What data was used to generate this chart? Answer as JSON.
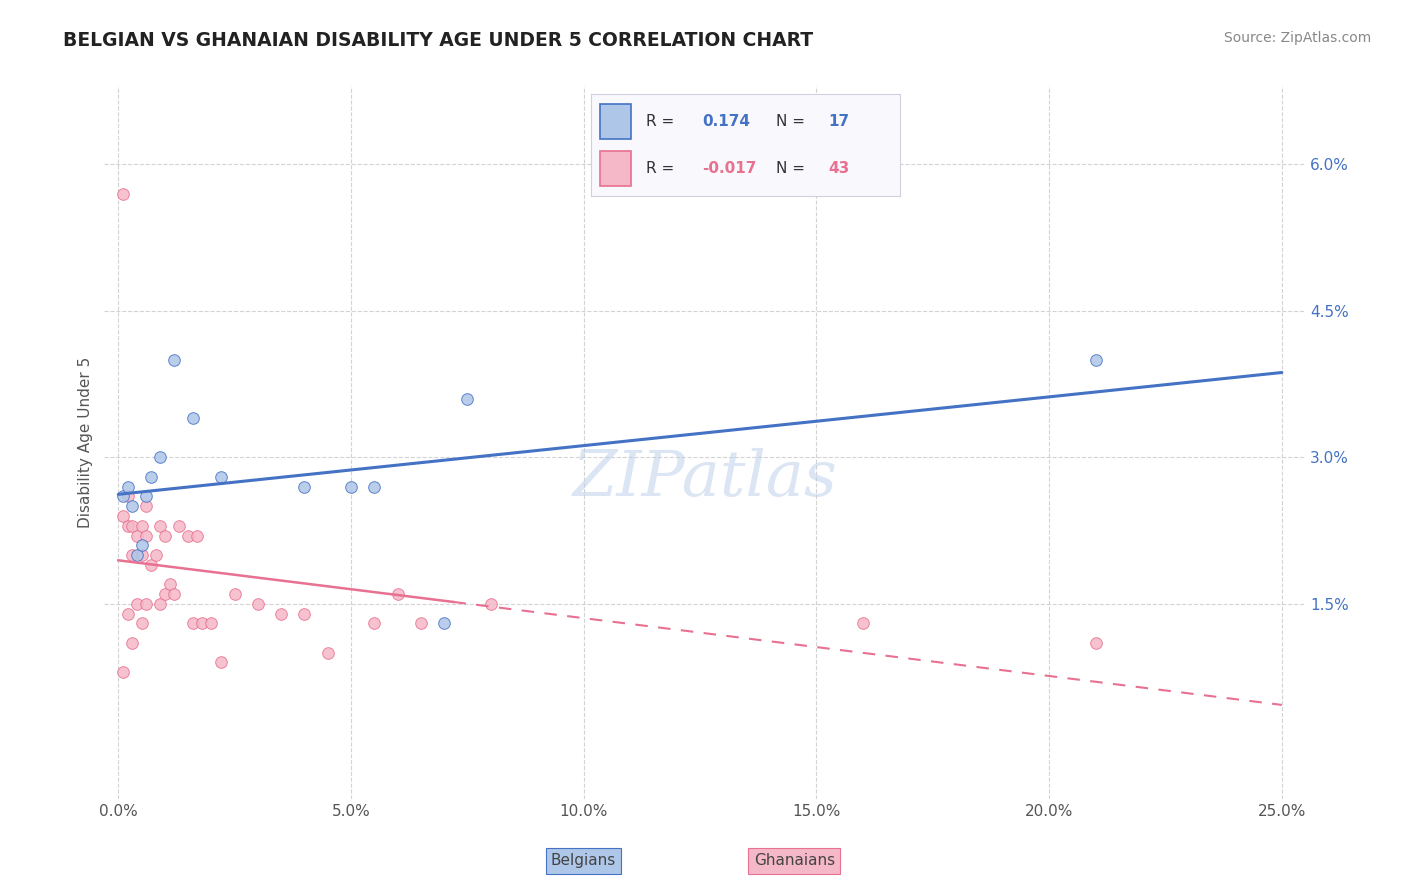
{
  "title": "BELGIAN VS GHANAIAN DISABILITY AGE UNDER 5 CORRELATION CHART",
  "source": "Source: ZipAtlas.com",
  "ylabel": "Disability Age Under 5",
  "xlim": [
    -0.003,
    0.255
  ],
  "ylim": [
    -0.005,
    0.068
  ],
  "xticks": [
    0.0,
    0.05,
    0.1,
    0.15,
    0.2,
    0.25
  ],
  "xticklabels": [
    "0.0%",
    "5.0%",
    "10.0%",
    "15.0%",
    "20.0%",
    "25.0%"
  ],
  "yticks": [
    0.015,
    0.03,
    0.045,
    0.06
  ],
  "yticklabels": [
    "1.5%",
    "3.0%",
    "4.5%",
    "6.0%"
  ],
  "belgian_color": "#aec6e8",
  "ghanaian_color": "#f5b8c8",
  "belgian_line_color": "#4472c4",
  "ghanaian_line_color": "#e87090",
  "belgian_R": "0.174",
  "belgian_N": "17",
  "ghanaian_R": "-0.017",
  "ghanaian_N": "43",
  "watermark": "ZIPatlas",
  "belgians_x": [
    0.001,
    0.002,
    0.003,
    0.004,
    0.005,
    0.006,
    0.007,
    0.009,
    0.012,
    0.016,
    0.022,
    0.04,
    0.05,
    0.055,
    0.07,
    0.075,
    0.21
  ],
  "belgians_y": [
    0.026,
    0.027,
    0.025,
    0.02,
    0.021,
    0.026,
    0.028,
    0.03,
    0.04,
    0.034,
    0.028,
    0.027,
    0.027,
    0.027,
    0.013,
    0.036,
    0.04
  ],
  "ghanaians_x": [
    0.001,
    0.001,
    0.001,
    0.002,
    0.002,
    0.002,
    0.003,
    0.003,
    0.003,
    0.004,
    0.004,
    0.005,
    0.005,
    0.005,
    0.006,
    0.006,
    0.006,
    0.007,
    0.008,
    0.009,
    0.009,
    0.01,
    0.01,
    0.011,
    0.012,
    0.013,
    0.015,
    0.016,
    0.017,
    0.018,
    0.02,
    0.022,
    0.025,
    0.03,
    0.035,
    0.04,
    0.045,
    0.055,
    0.06,
    0.065,
    0.08,
    0.16,
    0.21
  ],
  "ghanaians_y": [
    0.057,
    0.024,
    0.008,
    0.026,
    0.023,
    0.014,
    0.023,
    0.02,
    0.011,
    0.022,
    0.015,
    0.023,
    0.02,
    0.013,
    0.025,
    0.022,
    0.015,
    0.019,
    0.02,
    0.023,
    0.015,
    0.022,
    0.016,
    0.017,
    0.016,
    0.023,
    0.022,
    0.013,
    0.022,
    0.013,
    0.013,
    0.009,
    0.016,
    0.015,
    0.014,
    0.014,
    0.01,
    0.013,
    0.016,
    0.013,
    0.015,
    0.013,
    0.011
  ],
  "background_color": "#ffffff",
  "grid_color": "#cccccc",
  "ylabel_color": "#555555",
  "ytick_color": "#4472c4",
  "xtick_color": "#555555"
}
